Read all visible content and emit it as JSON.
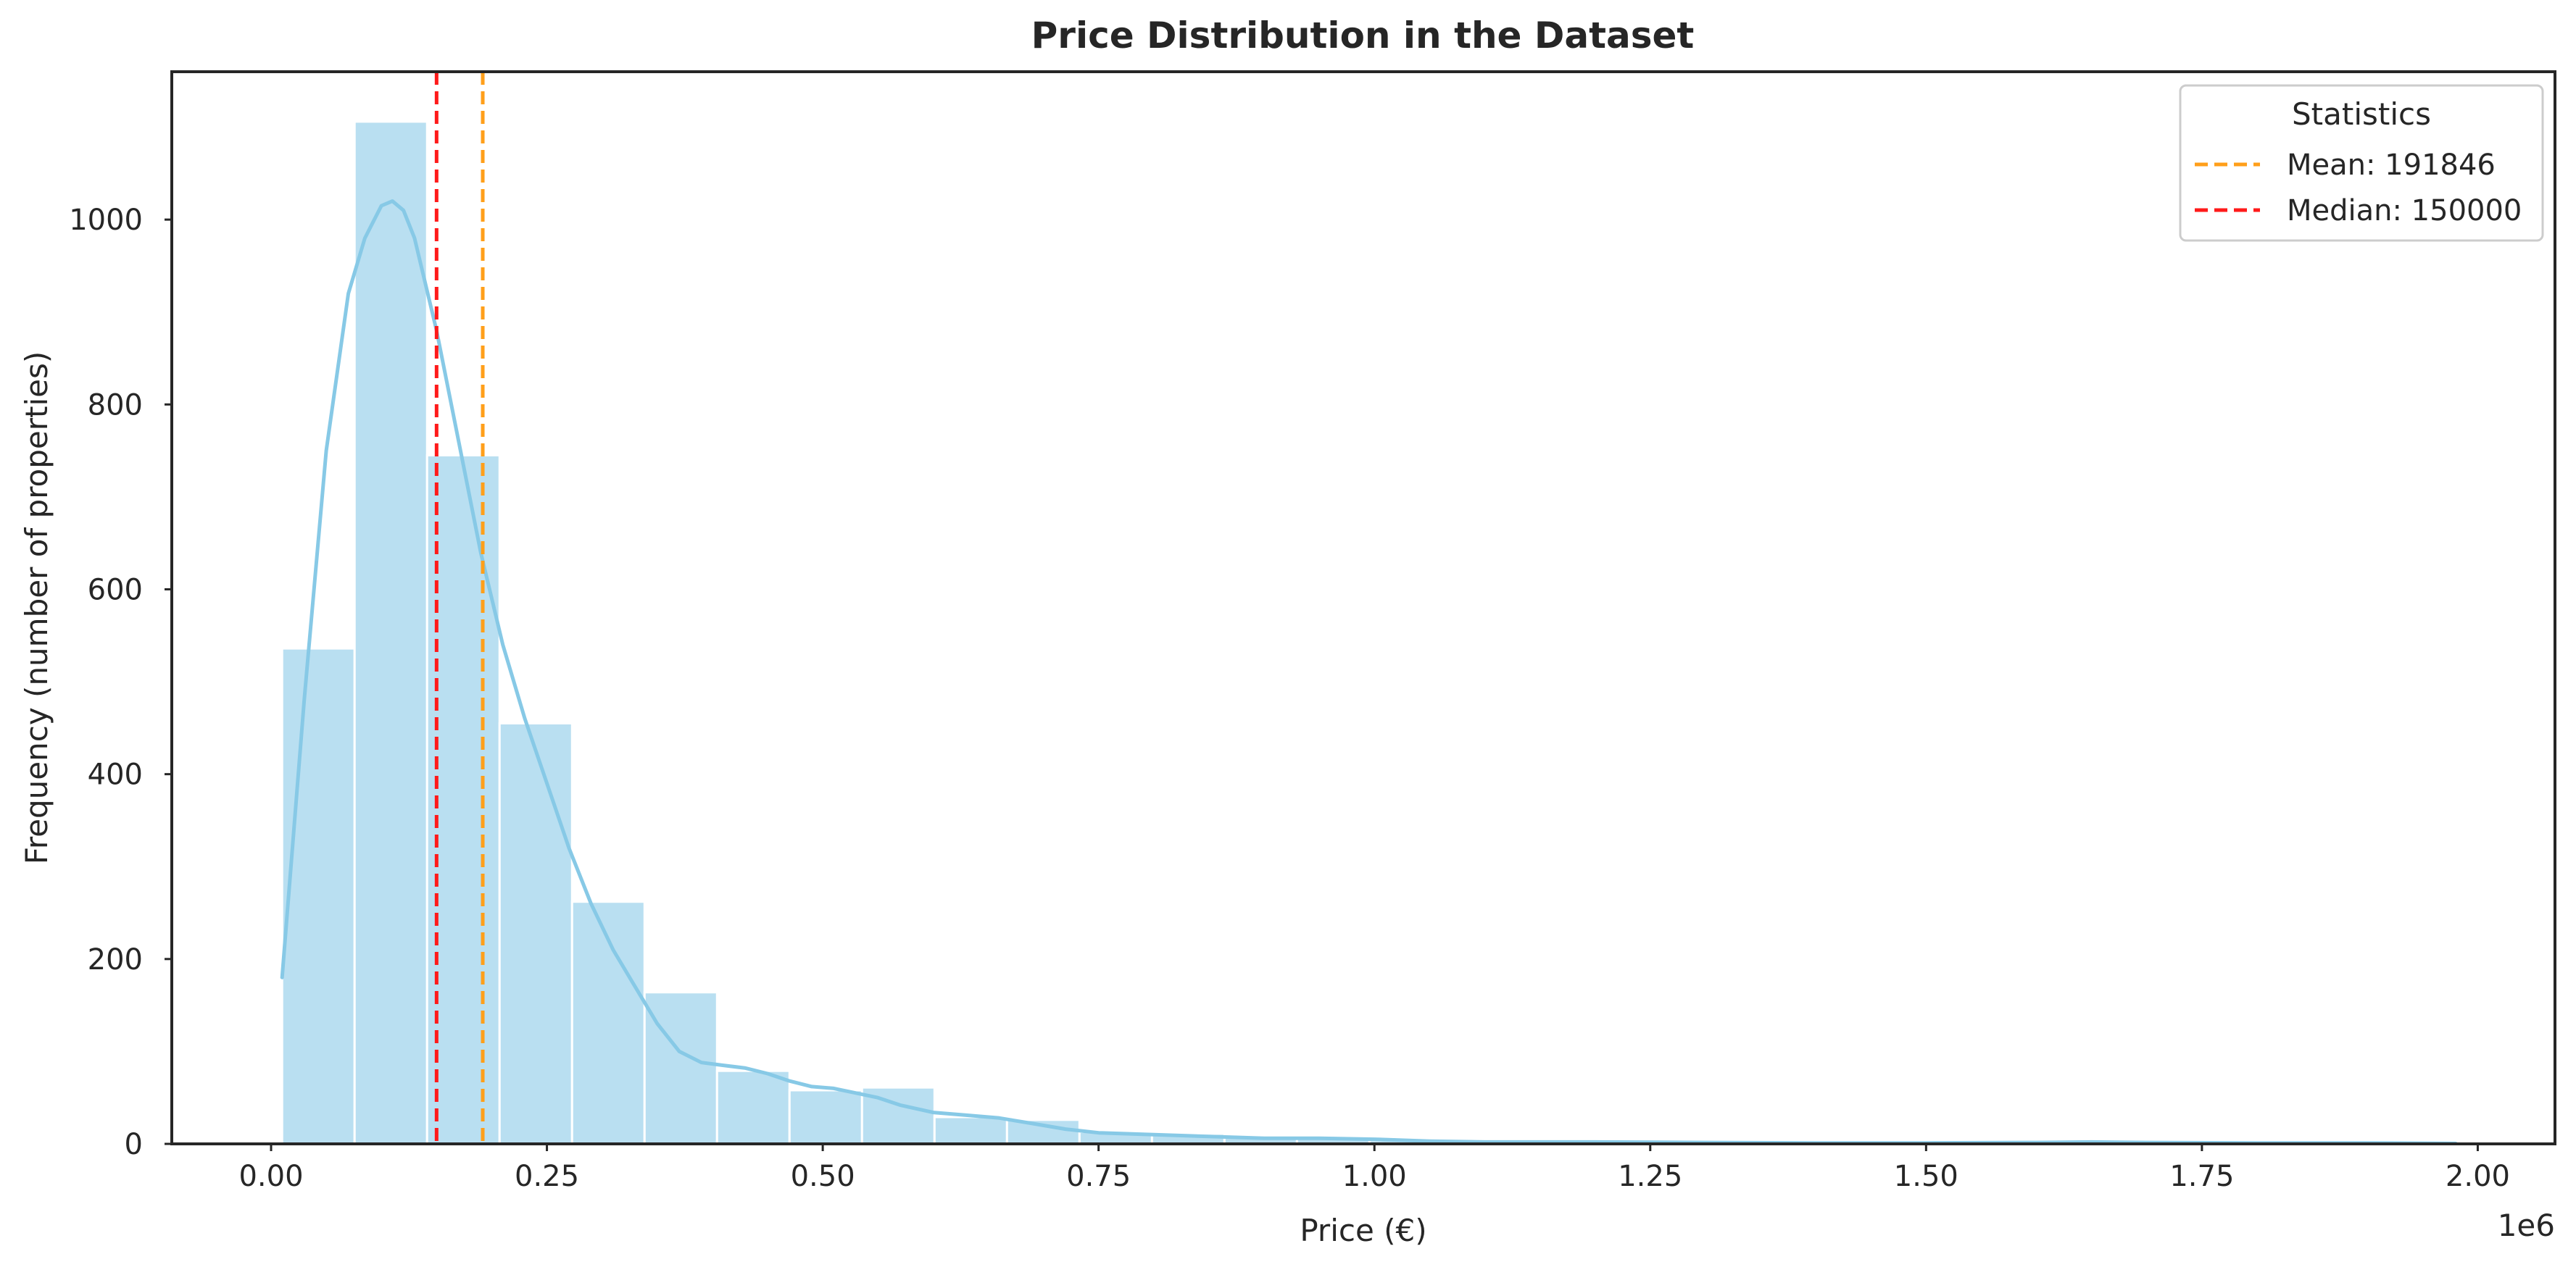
{
  "chart_data": {
    "type": "bar",
    "title": "Price Distribution in the Dataset",
    "xlabel": "Price (€)",
    "ylabel": "Frequency (number of properties)",
    "x_offset_label": "1e6",
    "xlim": [
      -0.09,
      2.07
    ],
    "ylim": [
      0,
      1160
    ],
    "x_ticks": [
      0.0,
      0.25,
      0.5,
      0.75,
      1.0,
      1.25,
      1.5,
      1.75,
      2.0
    ],
    "x_tick_labels": [
      "0.00",
      "0.25",
      "0.50",
      "0.75",
      "1.00",
      "1.25",
      "1.50",
      "1.75",
      "2.00"
    ],
    "y_ticks": [
      0,
      200,
      400,
      600,
      800,
      1000
    ],
    "y_tick_labels": [
      "0",
      "200",
      "400",
      "600",
      "800",
      "1000"
    ],
    "grid": false,
    "bins": {
      "start": 0.01,
      "width": 0.0657,
      "values": [
        536,
        1106,
        745,
        455,
        262,
        164,
        79,
        58,
        61,
        29,
        26,
        13,
        11,
        8,
        8,
        4,
        3,
        3,
        2,
        2,
        2,
        2,
        2,
        1,
        1,
        1,
        2,
        1,
        1,
        2
      ]
    },
    "kde": {
      "x": [
        0.01,
        0.03,
        0.05,
        0.07,
        0.085,
        0.1,
        0.11,
        0.12,
        0.13,
        0.15,
        0.17,
        0.19,
        0.21,
        0.23,
        0.25,
        0.27,
        0.29,
        0.31,
        0.33,
        0.35,
        0.37,
        0.39,
        0.41,
        0.43,
        0.45,
        0.47,
        0.49,
        0.51,
        0.53,
        0.55,
        0.57,
        0.6,
        0.63,
        0.66,
        0.69,
        0.72,
        0.75,
        0.8,
        0.85,
        0.9,
        0.95,
        1.0,
        1.05,
        1.1,
        1.2,
        1.3,
        1.4,
        1.5,
        1.6,
        1.65,
        1.7,
        1.8,
        1.9,
        1.98
      ],
      "y": [
        180,
        480,
        750,
        920,
        980,
        1015,
        1020,
        1010,
        980,
        880,
        760,
        640,
        540,
        460,
        390,
        320,
        260,
        210,
        170,
        130,
        100,
        88,
        85,
        82,
        76,
        68,
        62,
        60,
        55,
        50,
        42,
        34,
        31,
        28,
        22,
        16,
        12,
        10,
        8,
        6,
        6,
        5,
        3,
        2,
        2,
        1.5,
        1,
        1,
        1.5,
        2,
        1.5,
        1,
        1,
        0.5
      ]
    },
    "vlines": [
      {
        "name": "Mean: 191846",
        "x": 191846,
        "color": "#ff9f1a"
      },
      {
        "name": "Median: 150000",
        "x": 150000,
        "color": "#ff1a1a"
      }
    ],
    "legend": {
      "title": "Statistics",
      "placement": "top-right",
      "entries": [
        "Mean: 191846",
        "Median: 150000"
      ]
    },
    "colors": {
      "bar_fill": "#b9dff1",
      "kde_line": "#87c9e6",
      "axis": "#262626",
      "text": "#262626"
    }
  }
}
